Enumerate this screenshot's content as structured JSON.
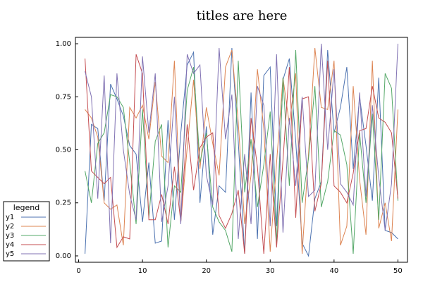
{
  "chart_data": {
    "type": "line",
    "title": "titles are here",
    "x": [
      1,
      2,
      3,
      4,
      5,
      6,
      7,
      8,
      9,
      10,
      11,
      12,
      13,
      14,
      15,
      16,
      17,
      18,
      19,
      20,
      21,
      22,
      23,
      24,
      25,
      26,
      27,
      28,
      29,
      30,
      31,
      32,
      33,
      34,
      35,
      36,
      37,
      38,
      39,
      40,
      41,
      42,
      43,
      44,
      45,
      46,
      47,
      48,
      49,
      50
    ],
    "series": [
      {
        "name": "y1",
        "color": "#4c72b0",
        "values": [
          0.01,
          0.62,
          0.6,
          0.26,
          0.81,
          0.74,
          0.66,
          0.52,
          0.48,
          0.16,
          0.44,
          0.06,
          0.07,
          0.64,
          0.17,
          0.58,
          0.9,
          0.96,
          0.25,
          0.61,
          0.1,
          0.33,
          0.3,
          0.98,
          0.54,
          0.01,
          0.77,
          0.08,
          0.85,
          0.89,
          0.14,
          0.83,
          0.93,
          0.54,
          0.06,
          0.0,
          0.27,
          0.35,
          0.97,
          0.58,
          0.7,
          0.89,
          0.41,
          0.75,
          0.52,
          0.26,
          0.84,
          0.12,
          0.11,
          0.08
        ]
      },
      {
        "name": "y2",
        "color": "#dd8452",
        "values": [
          0.69,
          0.65,
          0.56,
          0.25,
          0.22,
          0.24,
          0.05,
          0.7,
          0.65,
          0.71,
          0.55,
          0.82,
          0.47,
          0.44,
          0.92,
          0.16,
          0.51,
          0.83,
          0.41,
          0.7,
          0.53,
          0.38,
          0.89,
          0.97,
          0.63,
          0.15,
          0.38,
          0.88,
          0.6,
          0.02,
          0.44,
          0.84,
          0.62,
          0.86,
          0.01,
          0.48,
          0.98,
          0.7,
          0.69,
          0.92,
          0.05,
          0.14,
          0.8,
          0.36,
          0.1,
          0.92,
          0.13,
          0.25,
          0.07,
          0.69
        ]
      },
      {
        "name": "y3",
        "color": "#55a868",
        "values": [
          0.4,
          0.25,
          0.53,
          0.58,
          0.76,
          0.75,
          0.7,
          0.44,
          0.15,
          0.69,
          0.18,
          0.54,
          0.62,
          0.04,
          0.33,
          0.3,
          0.78,
          0.89,
          0.44,
          0.58,
          0.23,
          0.16,
          0.12,
          0.02,
          0.92,
          0.3,
          0.55,
          0.23,
          0.43,
          0.68,
          0.06,
          0.84,
          0.33,
          0.97,
          0.25,
          0.46,
          0.8,
          0.23,
          0.35,
          0.59,
          0.57,
          0.43,
          0.01,
          0.58,
          0.25,
          0.67,
          0.17,
          0.86,
          0.79,
          0.26
        ]
      },
      {
        "name": "y4",
        "color": "#c44e52",
        "values": [
          0.93,
          0.4,
          0.37,
          0.34,
          0.37,
          0.04,
          0.09,
          0.08,
          0.95,
          0.86,
          0.17,
          0.17,
          0.29,
          0.15,
          0.42,
          0.16,
          0.62,
          0.31,
          0.51,
          0.56,
          0.58,
          0.19,
          0.13,
          0.2,
          0.31,
          0.01,
          0.65,
          0.42,
          0.01,
          0.48,
          0.04,
          0.45,
          0.89,
          0.18,
          0.74,
          0.75,
          0.21,
          0.34,
          0.92,
          0.33,
          0.3,
          0.25,
          0.39,
          0.59,
          0.6,
          0.8,
          0.65,
          0.63,
          0.58,
          0.27
        ]
      },
      {
        "name": "y5",
        "color": "#8172b3",
        "values": [
          0.87,
          0.75,
          0.27,
          0.85,
          0.06,
          0.86,
          0.5,
          0.29,
          0.17,
          0.94,
          0.58,
          0.86,
          0.16,
          0.33,
          0.75,
          0.15,
          0.95,
          0.86,
          0.9,
          0.38,
          0.24,
          0.98,
          0.55,
          0.76,
          0.08,
          0.48,
          0.15,
          0.8,
          0.71,
          0.14,
          0.95,
          0.11,
          0.65,
          0.33,
          0.75,
          0.28,
          0.31,
          1.0,
          0.5,
          0.88,
          0.34,
          0.3,
          0.24,
          0.77,
          0.28,
          0.71,
          0.37,
          0.12,
          0.34,
          1.0
        ]
      }
    ],
    "xlim": [
      -0.5,
      51.5
    ],
    "xticks": [
      0,
      10,
      20,
      30,
      40,
      50
    ],
    "ylim": [
      -0.03,
      1.03
    ],
    "yticks": [
      {
        "value": 0,
        "label": "0.00"
      },
      {
        "value": 0.25,
        "label": "0.25"
      },
      {
        "value": 0.5,
        "label": "0.50"
      },
      {
        "value": 0.75,
        "label": "0.75"
      },
      {
        "value": 1,
        "label": "1.00"
      }
    ],
    "grid": false,
    "legend": "bottom-left",
    "legend_title": "legend"
  }
}
